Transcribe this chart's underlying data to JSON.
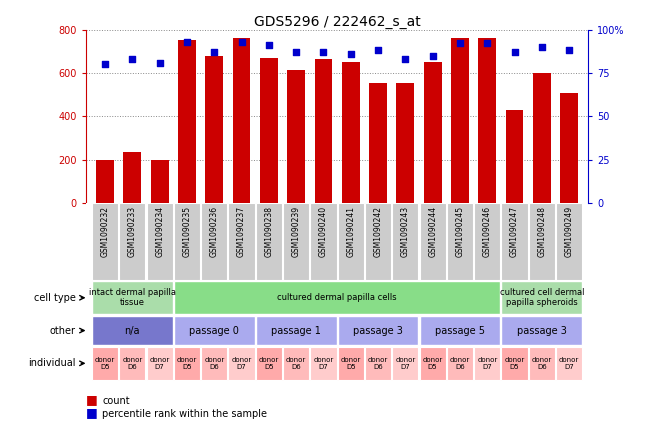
{
  "title": "GDS5296 / 222462_s_at",
  "samples": [
    "GSM1090232",
    "GSM1090233",
    "GSM1090234",
    "GSM1090235",
    "GSM1090236",
    "GSM1090237",
    "GSM1090238",
    "GSM1090239",
    "GSM1090240",
    "GSM1090241",
    "GSM1090242",
    "GSM1090243",
    "GSM1090244",
    "GSM1090245",
    "GSM1090246",
    "GSM1090247",
    "GSM1090248",
    "GSM1090249"
  ],
  "counts": [
    200,
    235,
    200,
    750,
    680,
    760,
    670,
    615,
    665,
    650,
    555,
    555,
    650,
    760,
    760,
    430,
    600,
    510
  ],
  "percentiles": [
    80,
    83,
    81,
    93,
    87,
    93,
    91,
    87,
    87,
    86,
    88,
    83,
    85,
    92,
    92,
    87,
    90,
    88
  ],
  "ylim_left": [
    0,
    800
  ],
  "ylim_right": [
    0,
    100
  ],
  "yticks_left": [
    0,
    200,
    400,
    600,
    800
  ],
  "yticks_right": [
    0,
    25,
    50,
    75,
    100
  ],
  "bar_color": "#cc0000",
  "dot_color": "#0000cc",
  "cell_type_groups": [
    {
      "label": "intact dermal papilla\ntissue",
      "start": 0,
      "end": 3,
      "color": "#aaddaa"
    },
    {
      "label": "cultured dermal papilla cells",
      "start": 3,
      "end": 15,
      "color": "#88dd88"
    },
    {
      "label": "cultured cell dermal\npapilla spheroids",
      "start": 15,
      "end": 18,
      "color": "#aaddaa"
    }
  ],
  "other_groups": [
    {
      "label": "n/a",
      "start": 0,
      "end": 3,
      "color": "#7777cc"
    },
    {
      "label": "passage 0",
      "start": 3,
      "end": 6,
      "color": "#aaaaee"
    },
    {
      "label": "passage 1",
      "start": 6,
      "end": 9,
      "color": "#aaaaee"
    },
    {
      "label": "passage 3",
      "start": 9,
      "end": 12,
      "color": "#aaaaee"
    },
    {
      "label": "passage 5",
      "start": 12,
      "end": 15,
      "color": "#aaaaee"
    },
    {
      "label": "passage 3",
      "start": 15,
      "end": 18,
      "color": "#aaaaee"
    }
  ],
  "individual_labels": [
    "donor\nD5",
    "donor\nD6",
    "donor\nD7",
    "donor\nD5",
    "donor\nD6",
    "donor\nD7",
    "donor\nD5",
    "donor\nD6",
    "donor\nD7",
    "donor\nD5",
    "donor\nD6",
    "donor\nD7",
    "donor\nD5",
    "donor\nD6",
    "donor\nD7",
    "donor\nD5",
    "donor\nD6",
    "donor\nD7"
  ],
  "individual_colors": [
    "#ffaaaa",
    "#ffbbbb",
    "#ffcccc",
    "#ffaaaa",
    "#ffbbbb",
    "#ffcccc",
    "#ffaaaa",
    "#ffbbbb",
    "#ffcccc",
    "#ffaaaa",
    "#ffbbbb",
    "#ffcccc",
    "#ffaaaa",
    "#ffbbbb",
    "#ffcccc",
    "#ffaaaa",
    "#ffbbbb",
    "#ffcccc"
  ],
  "row_labels": [
    "cell type",
    "other",
    "individual"
  ],
  "legend_items": [
    {
      "color": "#cc0000",
      "label": "count"
    },
    {
      "color": "#0000cc",
      "label": "percentile rank within the sample"
    }
  ],
  "bg_color": "#ffffff",
  "grid_color": "#888888",
  "xtick_bg": "#cccccc"
}
